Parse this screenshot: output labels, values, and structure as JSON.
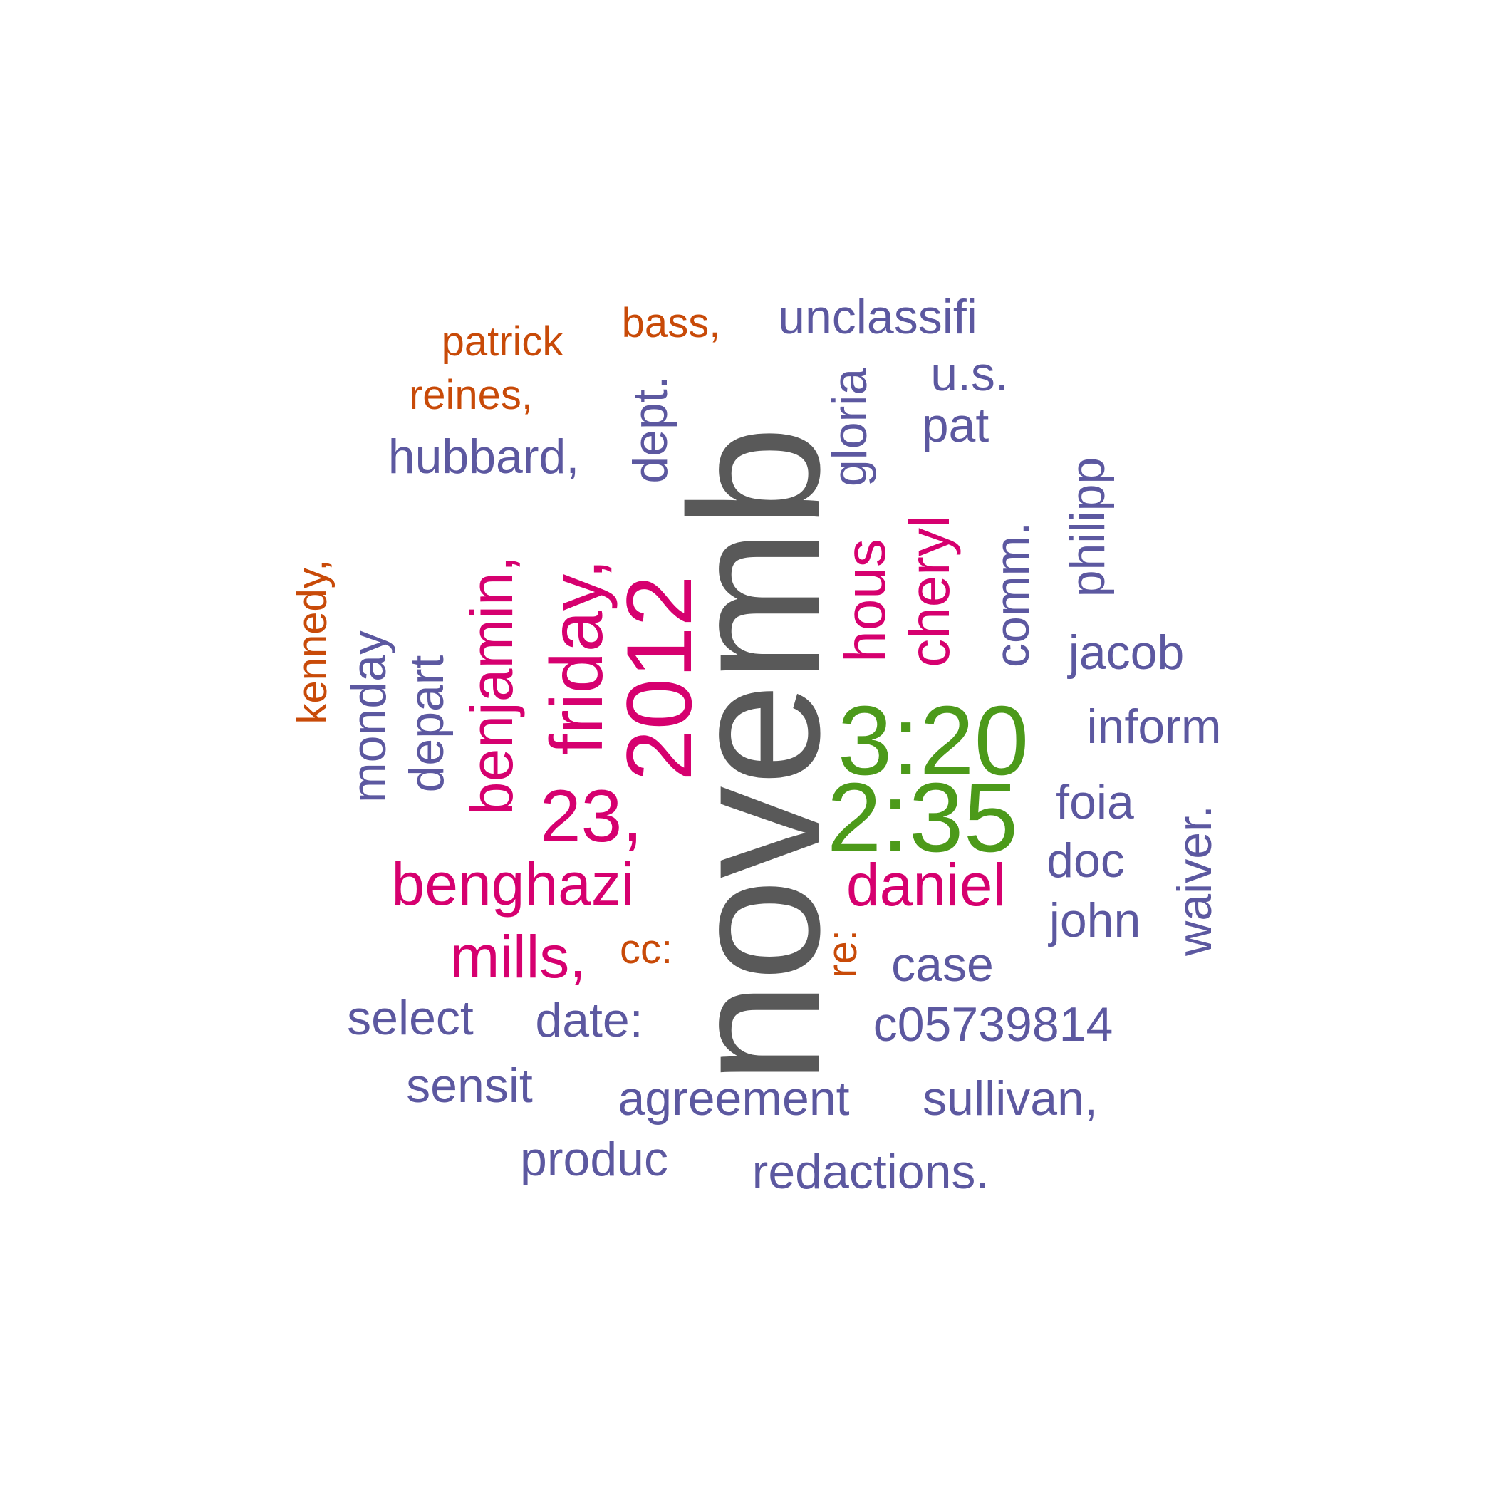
{
  "palette": {
    "gray": "#595959",
    "green": "#4c9a1a",
    "magenta": "#d6006f",
    "purple": "#5c58a0",
    "orange": "#c84a08"
  },
  "words": [
    {
      "id": "novemb",
      "text": "novemb",
      "color": "gray"
    },
    {
      "id": "3-20",
      "text": "3:20",
      "color": "green"
    },
    {
      "id": "2-35",
      "text": "2:35",
      "color": "green"
    },
    {
      "id": "2012",
      "text": "2012",
      "color": "magenta"
    },
    {
      "id": "friday",
      "text": "friday,",
      "color": "magenta"
    },
    {
      "id": "23",
      "text": "23,",
      "color": "magenta"
    },
    {
      "id": "benjamin",
      "text": "benjamin,",
      "color": "magenta"
    },
    {
      "id": "benghazi",
      "text": "benghazi",
      "color": "magenta"
    },
    {
      "id": "mills",
      "text": "mills,",
      "color": "magenta"
    },
    {
      "id": "daniel",
      "text": "daniel",
      "color": "magenta"
    },
    {
      "id": "hous",
      "text": "hous",
      "color": "magenta"
    },
    {
      "id": "cheryl",
      "text": "cheryl",
      "color": "magenta"
    },
    {
      "id": "unclassifi",
      "text": "unclassifi",
      "color": "purple"
    },
    {
      "id": "u-s",
      "text": "u.s.",
      "color": "purple"
    },
    {
      "id": "pat",
      "text": "pat",
      "color": "purple"
    },
    {
      "id": "gloria",
      "text": "gloria",
      "color": "purple"
    },
    {
      "id": "dept",
      "text": "dept.",
      "color": "purple"
    },
    {
      "id": "hubbard",
      "text": "hubbard,",
      "color": "purple"
    },
    {
      "id": "comm",
      "text": "comm.",
      "color": "purple"
    },
    {
      "id": "philipp",
      "text": "philipp",
      "color": "purple"
    },
    {
      "id": "jacob",
      "text": "jacob",
      "color": "purple"
    },
    {
      "id": "inform",
      "text": "inform",
      "color": "purple"
    },
    {
      "id": "foia",
      "text": "foia",
      "color": "purple"
    },
    {
      "id": "waiver",
      "text": "waiver.",
      "color": "purple"
    },
    {
      "id": "doc",
      "text": "doc",
      "color": "purple"
    },
    {
      "id": "john",
      "text": "john",
      "color": "purple"
    },
    {
      "id": "case",
      "text": "case",
      "color": "purple"
    },
    {
      "id": "c05739814",
      "text": "c05739814",
      "color": "purple"
    },
    {
      "id": "monday",
      "text": "monday",
      "color": "purple"
    },
    {
      "id": "depart",
      "text": "depart",
      "color": "purple"
    },
    {
      "id": "select",
      "text": "select",
      "color": "purple"
    },
    {
      "id": "date",
      "text": "date:",
      "color": "purple"
    },
    {
      "id": "sensit",
      "text": "sensit",
      "color": "purple"
    },
    {
      "id": "agreement",
      "text": "agreement",
      "color": "purple"
    },
    {
      "id": "sullivan",
      "text": "sullivan,",
      "color": "purple"
    },
    {
      "id": "produc",
      "text": "produc",
      "color": "purple"
    },
    {
      "id": "redactions",
      "text": "redactions.",
      "color": "purple"
    },
    {
      "id": "patrick",
      "text": "patrick",
      "color": "orange"
    },
    {
      "id": "bass",
      "text": "bass,",
      "color": "orange"
    },
    {
      "id": "reines",
      "text": "reines,",
      "color": "orange"
    },
    {
      "id": "kennedy",
      "text": "kennedy,",
      "color": "orange"
    },
    {
      "id": "cc",
      "text": "cc:",
      "color": "orange"
    },
    {
      "id": "re",
      "text": "re:",
      "color": "orange"
    }
  ]
}
